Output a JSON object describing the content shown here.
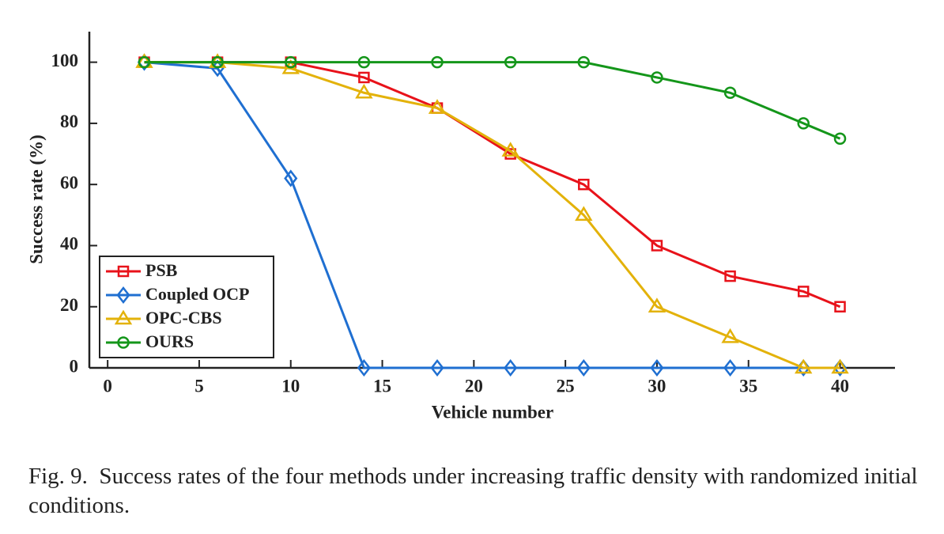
{
  "chart_data": {
    "type": "line",
    "xlabel": "Vehicle number",
    "ylabel": "Success rate (%)",
    "x": [
      2,
      6,
      10,
      14,
      18,
      22,
      26,
      30,
      34,
      38,
      40
    ],
    "series": [
      {
        "name": "PSB",
        "color": "#e8121a",
        "marker": "square",
        "values": [
          100,
          100,
          100,
          95,
          85,
          70,
          60,
          40,
          30,
          25,
          20
        ]
      },
      {
        "name": "Coupled OCP",
        "color": "#1f6fd1",
        "marker": "diamond",
        "values": [
          100,
          98,
          62,
          0,
          0,
          0,
          0,
          0,
          0,
          0,
          0
        ]
      },
      {
        "name": "OPC-CBS",
        "color": "#e3b20a",
        "marker": "triangle",
        "values": [
          100,
          100,
          98,
          90,
          85,
          71,
          50,
          20,
          10,
          0,
          0
        ]
      },
      {
        "name": "OURS",
        "color": "#14961a",
        "marker": "circle",
        "values": [
          100,
          100,
          100,
          100,
          100,
          100,
          100,
          95,
          90,
          80,
          75
        ]
      }
    ],
    "xlim": [
      -1,
      43
    ],
    "ylim": [
      0,
      110
    ],
    "xticks": [
      0,
      5,
      10,
      15,
      20,
      25,
      30,
      35,
      40
    ],
    "yticks": [
      0,
      20,
      40,
      60,
      80,
      100
    ],
    "legend": "lower left",
    "grid": false
  },
  "caption": "Fig. 9.  Success rates of the four methods under increasing traffic density with randomized initial conditions."
}
